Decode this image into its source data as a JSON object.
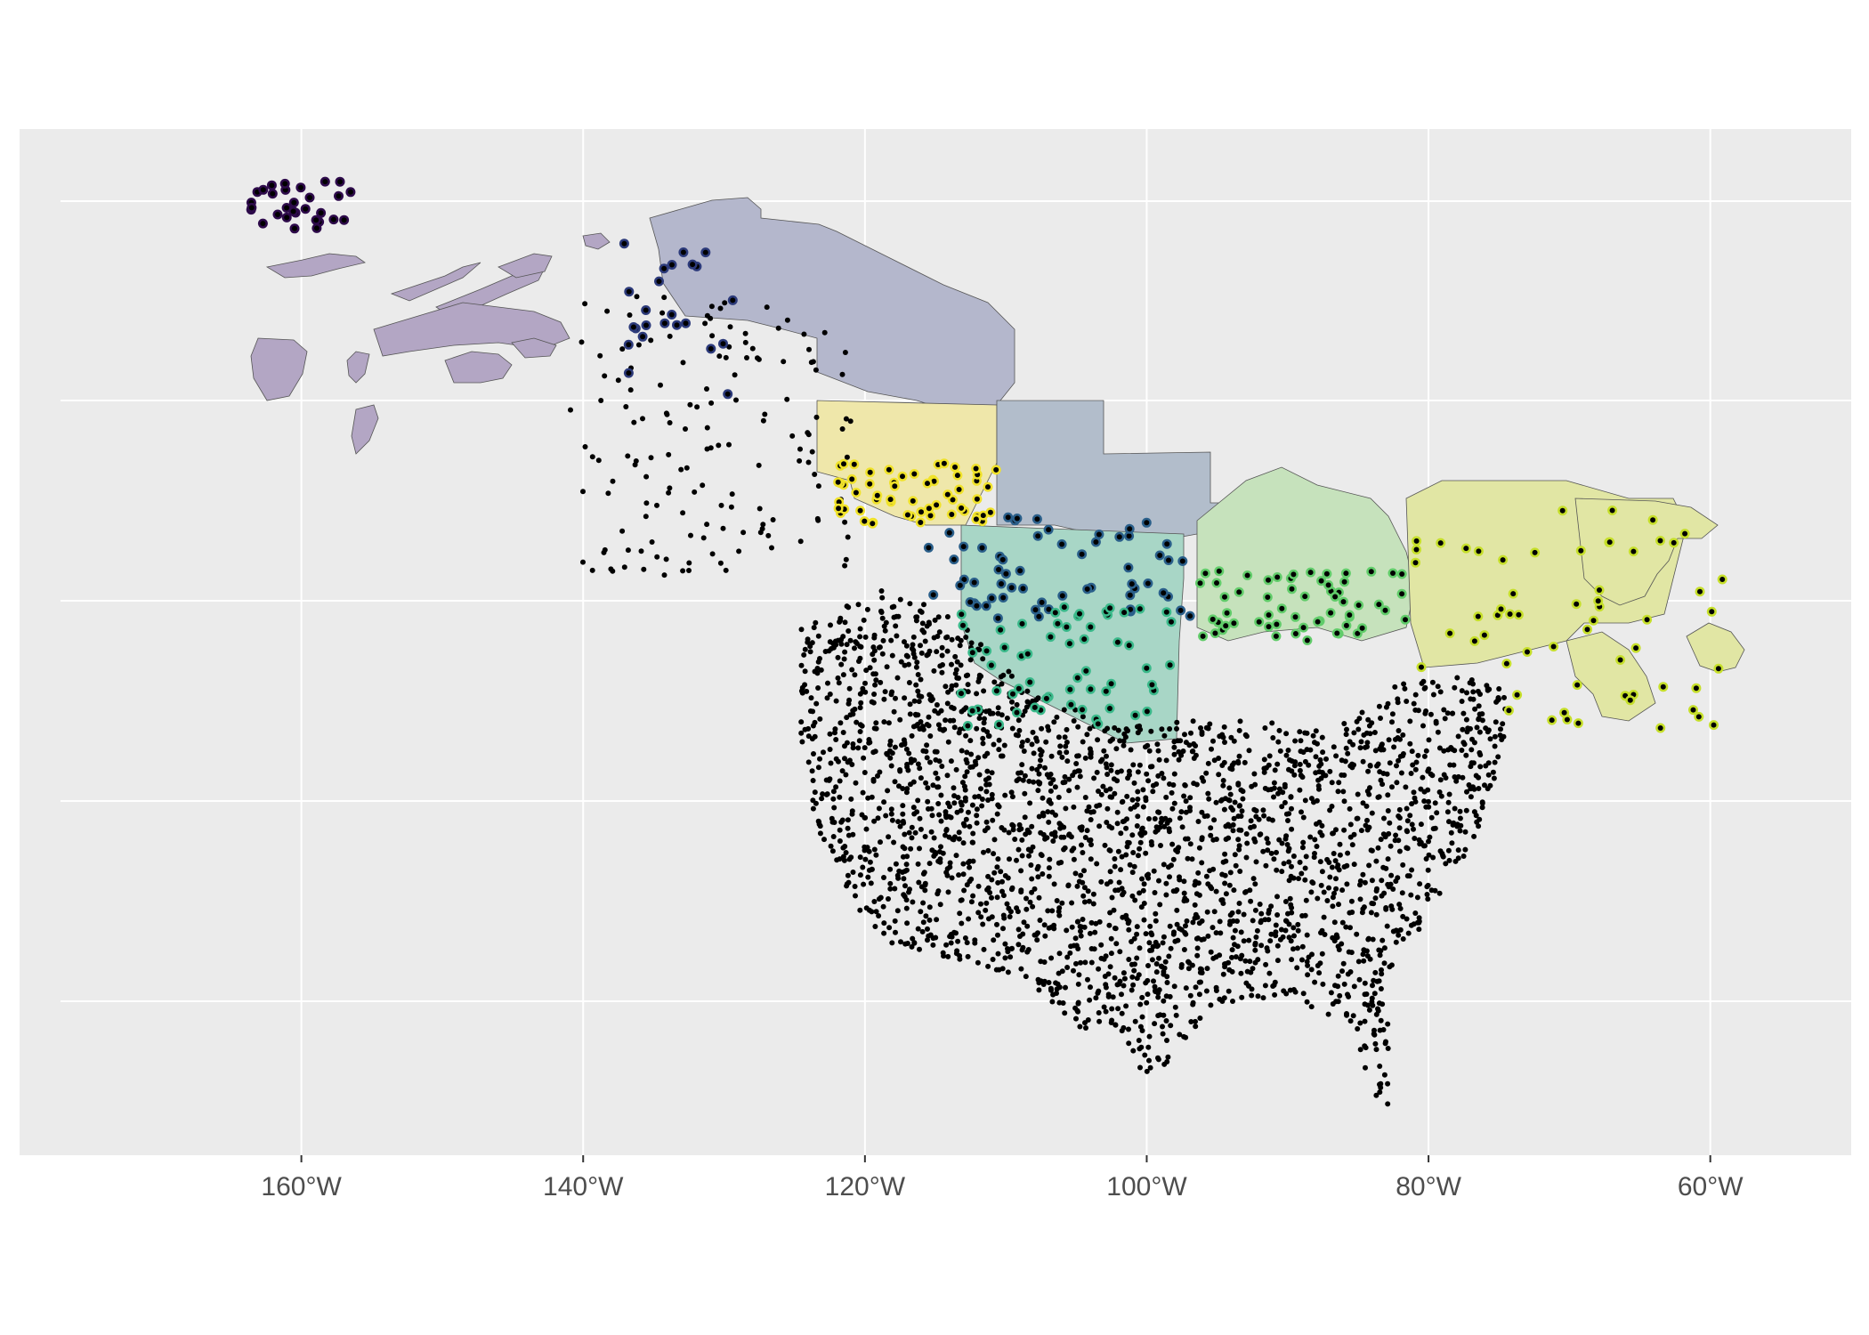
{
  "map": {
    "type": "scatter",
    "x_axis": {
      "tick_values": [
        -160,
        -140,
        -120,
        -100,
        -80,
        -60
      ],
      "tick_labels": [
        "160°W",
        "140°W",
        "120°W",
        "100°W",
        "80°W",
        "60°W"
      ],
      "range": [
        -180,
        -50
      ]
    },
    "y_axis": {
      "range": [
        10,
        80
      ],
      "tick_labels": []
    },
    "colors": {
      "panel_background": "#ebebeb",
      "grid": "#ffffff",
      "point": "#000000",
      "region_border": "#555555",
      "tick_label": "#4d4d4d"
    },
    "color_scale": "viridis",
    "region_groups": [
      {
        "name_hint": "alaska-aleutians",
        "color": "#b3a6c4",
        "point_color": "#2d0a4a"
      },
      {
        "name_hint": "yukon-northwest",
        "color": "#b4b7cc",
        "point_color": "#2c3a7a"
      },
      {
        "name_hint": "british-columbia-south",
        "color": "#efe7aa",
        "point_color": "#f0e22a"
      },
      {
        "name_hint": "alberta-saskatchewan-manitoba",
        "color": "#b2bdcb",
        "point_color": "#2a5f8a"
      },
      {
        "name_hint": "prairies-south",
        "color": "#a8d6c6",
        "point_color": "#3ab98a"
      },
      {
        "name_hint": "ontario",
        "color": "#c6e2bc",
        "point_color": "#61cc6a"
      },
      {
        "name_hint": "quebec-maritimes",
        "color": "#e1e6a4",
        "point_color": "#c6df2a"
      }
    ]
  }
}
